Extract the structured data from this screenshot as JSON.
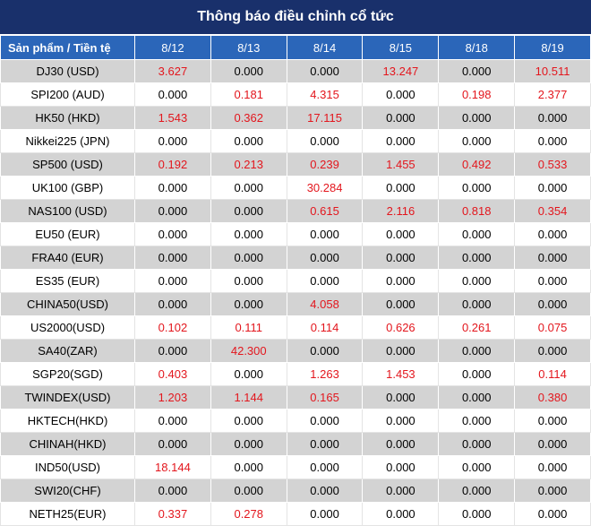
{
  "title": "Thông báo điều chỉnh cổ tức",
  "header": [
    "Sản phẩm / Tiền tệ",
    "8/12",
    "8/13",
    "8/14",
    "8/15",
    "8/18",
    "8/19"
  ],
  "colors": {
    "title_bg": "#19306b",
    "header_bg": "#2b66b9",
    "stripe": "#d3d3d3",
    "nonzero": "#e3161d"
  },
  "rows": [
    [
      "DJ30 (USD)",
      "3.627",
      "0.000",
      "0.000",
      "13.247",
      "0.000",
      "10.511"
    ],
    [
      "SPI200 (AUD)",
      "0.000",
      "0.181",
      "4.315",
      "0.000",
      "0.198",
      "2.377"
    ],
    [
      "HK50 (HKD)",
      "1.543",
      "0.362",
      "17.115",
      "0.000",
      "0.000",
      "0.000"
    ],
    [
      "Nikkei225 (JPN)",
      "0.000",
      "0.000",
      "0.000",
      "0.000",
      "0.000",
      "0.000"
    ],
    [
      "SP500 (USD)",
      "0.192",
      "0.213",
      "0.239",
      "1.455",
      "0.492",
      "0.533"
    ],
    [
      "UK100 (GBP)",
      "0.000",
      "0.000",
      "30.284",
      "0.000",
      "0.000",
      "0.000"
    ],
    [
      "NAS100 (USD)",
      "0.000",
      "0.000",
      "0.615",
      "2.116",
      "0.818",
      "0.354"
    ],
    [
      "EU50 (EUR)",
      "0.000",
      "0.000",
      "0.000",
      "0.000",
      "0.000",
      "0.000"
    ],
    [
      "FRA40 (EUR)",
      "0.000",
      "0.000",
      "0.000",
      "0.000",
      "0.000",
      "0.000"
    ],
    [
      "ES35 (EUR)",
      "0.000",
      "0.000",
      "0.000",
      "0.000",
      "0.000",
      "0.000"
    ],
    [
      "CHINA50(USD)",
      "0.000",
      "0.000",
      "4.058",
      "0.000",
      "0.000",
      "0.000"
    ],
    [
      "US2000(USD)",
      "0.102",
      "0.111",
      "0.114",
      "0.626",
      "0.261",
      "0.075"
    ],
    [
      "SA40(ZAR)",
      "0.000",
      "42.300",
      "0.000",
      "0.000",
      "0.000",
      "0.000"
    ],
    [
      "SGP20(SGD)",
      "0.403",
      "0.000",
      "1.263",
      "1.453",
      "0.000",
      "0.114"
    ],
    [
      "TWINDEX(USD)",
      "1.203",
      "1.144",
      "0.165",
      "0.000",
      "0.000",
      "0.380"
    ],
    [
      "HKTECH(HKD)",
      "0.000",
      "0.000",
      "0.000",
      "0.000",
      "0.000",
      "0.000"
    ],
    [
      "CHINAH(HKD)",
      "0.000",
      "0.000",
      "0.000",
      "0.000",
      "0.000",
      "0.000"
    ],
    [
      "IND50(USD)",
      "18.144",
      "0.000",
      "0.000",
      "0.000",
      "0.000",
      "0.000"
    ],
    [
      "SWI20(CHF)",
      "0.000",
      "0.000",
      "0.000",
      "0.000",
      "0.000",
      "0.000"
    ],
    [
      "NETH25(EUR)",
      "0.337",
      "0.278",
      "0.000",
      "0.000",
      "0.000",
      "0.000"
    ]
  ]
}
